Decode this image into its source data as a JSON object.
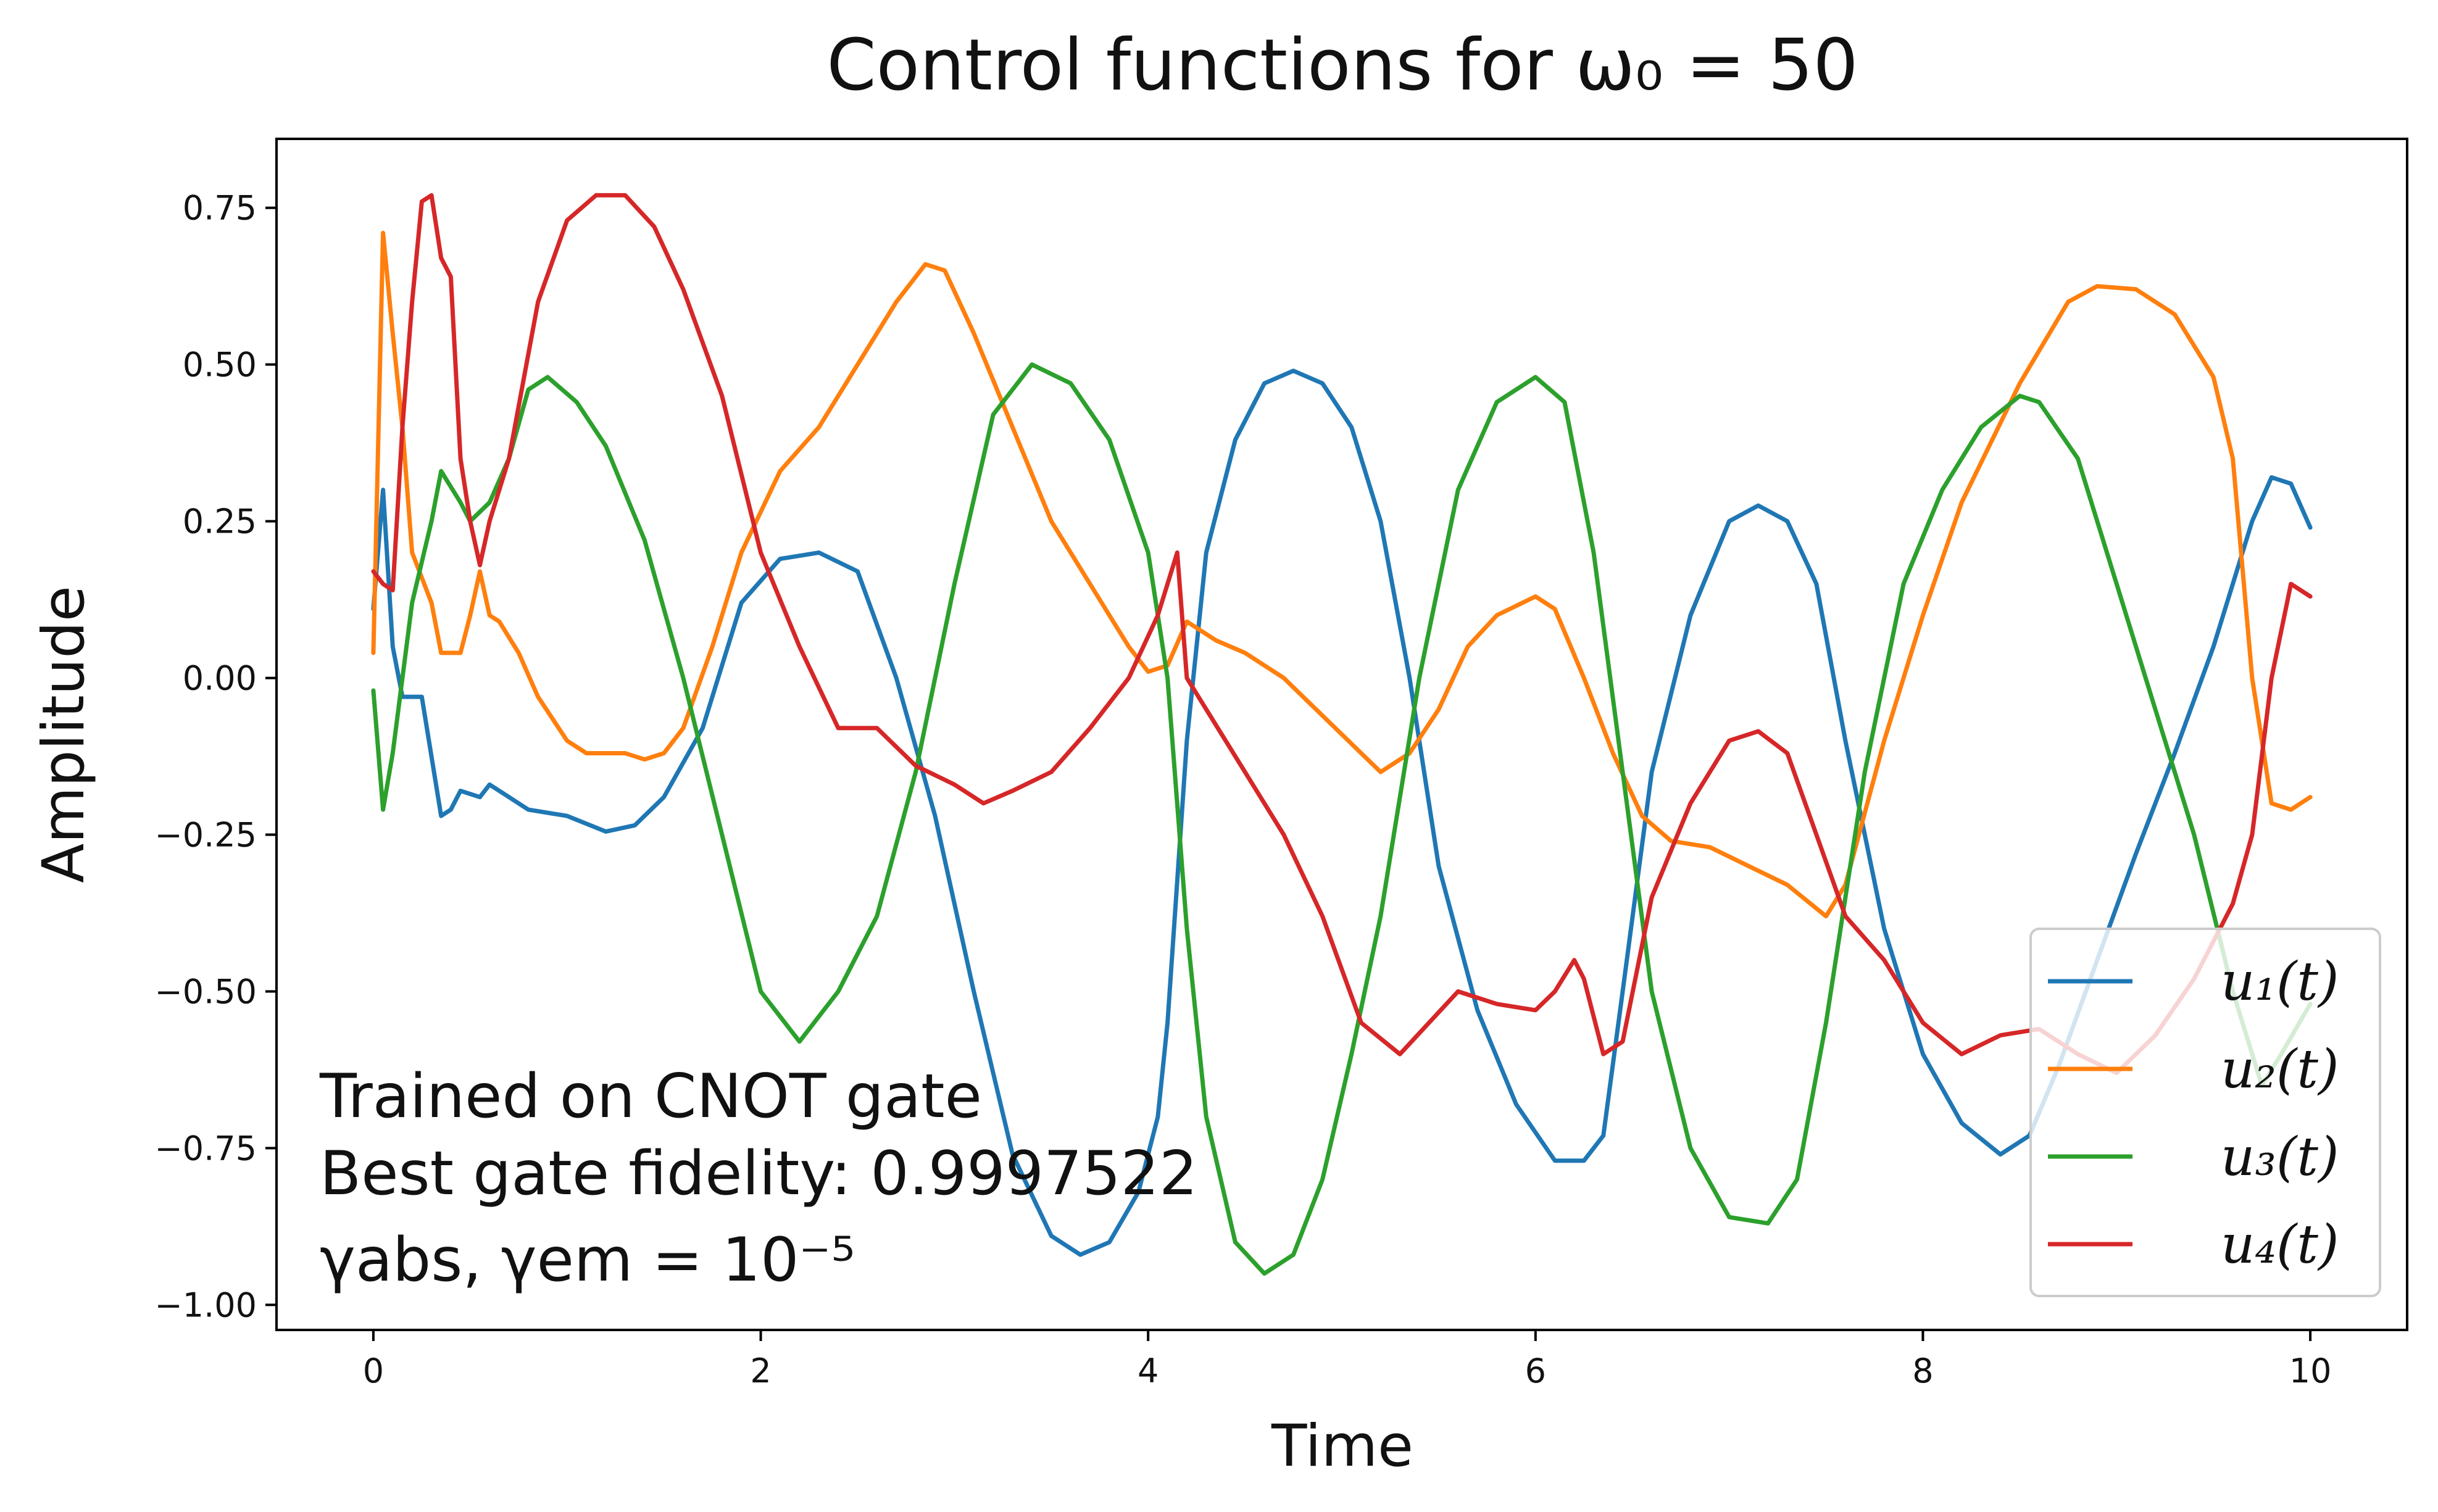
{
  "chart_data": {
    "type": "line",
    "title": "Control functions for ω₀ = 50",
    "xlabel": "Time",
    "ylabel": "Amplitude",
    "xlim": [
      -0.5,
      10.5
    ],
    "ylim": [
      -1.04,
      0.86
    ],
    "xticks": [
      0,
      2,
      4,
      6,
      8,
      10
    ],
    "xtick_labels": [
      "0",
      "2",
      "4",
      "6",
      "8",
      "10"
    ],
    "yticks": [
      -1.0,
      -0.75,
      -0.5,
      -0.25,
      0.0,
      0.25,
      0.5,
      0.75
    ],
    "ytick_labels": [
      "−1.00",
      "−0.75",
      "−0.50",
      "−0.25",
      "0.00",
      "0.25",
      "0.50",
      "0.75"
    ],
    "grid": false,
    "legend_position": "bottom-right",
    "annotations": [
      "Trained on CNOT gate",
      "Best gate fidelity: 0.9997522",
      "γabs, γem = 10⁻⁵"
    ],
    "series": [
      {
        "name": "u₁(t)",
        "color": "#1f77b4",
        "points": [
          [
            0,
            0.11
          ],
          [
            0.05,
            0.3
          ],
          [
            0.1,
            0.05
          ],
          [
            0.15,
            -0.03
          ],
          [
            0.25,
            -0.03
          ],
          [
            0.35,
            -0.22
          ],
          [
            0.4,
            -0.21
          ],
          [
            0.45,
            -0.18
          ],
          [
            0.55,
            -0.19
          ],
          [
            0.6,
            -0.17
          ],
          [
            0.7,
            -0.19
          ],
          [
            0.8,
            -0.21
          ],
          [
            1.0,
            -0.22
          ],
          [
            1.2,
            -0.245
          ],
          [
            1.35,
            -0.235
          ],
          [
            1.5,
            -0.19
          ],
          [
            1.7,
            -0.08
          ],
          [
            1.9,
            0.12
          ],
          [
            2.1,
            0.19
          ],
          [
            2.3,
            0.2
          ],
          [
            2.5,
            0.17
          ],
          [
            2.7,
            0.0
          ],
          [
            2.9,
            -0.22
          ],
          [
            3.1,
            -0.5
          ],
          [
            3.3,
            -0.76
          ],
          [
            3.5,
            -0.89
          ],
          [
            3.65,
            -0.92
          ],
          [
            3.8,
            -0.9
          ],
          [
            3.95,
            -0.82
          ],
          [
            4.05,
            -0.7
          ],
          [
            4.1,
            -0.55
          ],
          [
            4.2,
            -0.1
          ],
          [
            4.3,
            0.2
          ],
          [
            4.45,
            0.38
          ],
          [
            4.6,
            0.47
          ],
          [
            4.75,
            0.49
          ],
          [
            4.9,
            0.47
          ],
          [
            5.05,
            0.4
          ],
          [
            5.2,
            0.25
          ],
          [
            5.35,
            0.0
          ],
          [
            5.5,
            -0.3
          ],
          [
            5.7,
            -0.53
          ],
          [
            5.9,
            -0.68
          ],
          [
            6.1,
            -0.77
          ],
          [
            6.25,
            -0.77
          ],
          [
            6.35,
            -0.73
          ],
          [
            6.45,
            -0.5
          ],
          [
            6.6,
            -0.15
          ],
          [
            6.8,
            0.1
          ],
          [
            7.0,
            0.25
          ],
          [
            7.15,
            0.275
          ],
          [
            7.3,
            0.25
          ],
          [
            7.45,
            0.15
          ],
          [
            7.6,
            -0.1
          ],
          [
            7.8,
            -0.4
          ],
          [
            8.0,
            -0.6
          ],
          [
            8.2,
            -0.71
          ],
          [
            8.4,
            -0.76
          ],
          [
            8.55,
            -0.73
          ],
          [
            8.7,
            -0.62
          ],
          [
            8.9,
            -0.45
          ],
          [
            9.1,
            -0.28
          ],
          [
            9.3,
            -0.12
          ],
          [
            9.5,
            0.05
          ],
          [
            9.7,
            0.25
          ],
          [
            9.8,
            0.32
          ],
          [
            9.9,
            0.31
          ],
          [
            10.0,
            0.24
          ]
        ]
      },
      {
        "name": "u₂(t)",
        "color": "#ff7f0e",
        "points": [
          [
            0,
            0.04
          ],
          [
            0.05,
            0.71
          ],
          [
            0.1,
            0.55
          ],
          [
            0.15,
            0.4
          ],
          [
            0.2,
            0.2
          ],
          [
            0.3,
            0.12
          ],
          [
            0.35,
            0.04
          ],
          [
            0.45,
            0.04
          ],
          [
            0.5,
            0.1
          ],
          [
            0.55,
            0.17
          ],
          [
            0.6,
            0.1
          ],
          [
            0.65,
            0.09
          ],
          [
            0.75,
            0.04
          ],
          [
            0.85,
            -0.03
          ],
          [
            1.0,
            -0.1
          ],
          [
            1.1,
            -0.12
          ],
          [
            1.3,
            -0.12
          ],
          [
            1.4,
            -0.13
          ],
          [
            1.5,
            -0.12
          ],
          [
            1.6,
            -0.08
          ],
          [
            1.75,
            0.05
          ],
          [
            1.9,
            0.2
          ],
          [
            2.1,
            0.33
          ],
          [
            2.3,
            0.4
          ],
          [
            2.5,
            0.5
          ],
          [
            2.7,
            0.6
          ],
          [
            2.85,
            0.66
          ],
          [
            2.95,
            0.65
          ],
          [
            3.1,
            0.55
          ],
          [
            3.3,
            0.4
          ],
          [
            3.5,
            0.25
          ],
          [
            3.7,
            0.15
          ],
          [
            3.9,
            0.05
          ],
          [
            4.0,
            0.01
          ],
          [
            4.1,
            0.02
          ],
          [
            4.2,
            0.09
          ],
          [
            4.35,
            0.06
          ],
          [
            4.5,
            0.04
          ],
          [
            4.7,
            0.0
          ],
          [
            4.9,
            -0.06
          ],
          [
            5.1,
            -0.12
          ],
          [
            5.2,
            -0.15
          ],
          [
            5.35,
            -0.12
          ],
          [
            5.5,
            -0.05
          ],
          [
            5.65,
            0.05
          ],
          [
            5.8,
            0.1
          ],
          [
            6.0,
            0.13
          ],
          [
            6.1,
            0.11
          ],
          [
            6.25,
            0.0
          ],
          [
            6.4,
            -0.12
          ],
          [
            6.55,
            -0.22
          ],
          [
            6.7,
            -0.26
          ],
          [
            6.9,
            -0.27
          ],
          [
            7.1,
            -0.3
          ],
          [
            7.3,
            -0.33
          ],
          [
            7.5,
            -0.38
          ],
          [
            7.6,
            -0.33
          ],
          [
            7.8,
            -0.1
          ],
          [
            8.0,
            0.1
          ],
          [
            8.2,
            0.28
          ],
          [
            8.5,
            0.47
          ],
          [
            8.75,
            0.6
          ],
          [
            8.9,
            0.625
          ],
          [
            9.1,
            0.62
          ],
          [
            9.3,
            0.58
          ],
          [
            9.5,
            0.48
          ],
          [
            9.6,
            0.35
          ],
          [
            9.7,
            0.0
          ],
          [
            9.8,
            -0.2
          ],
          [
            9.9,
            -0.21
          ],
          [
            10.0,
            -0.19
          ]
        ]
      },
      {
        "name": "u₃(t)",
        "color": "#2ca02c",
        "points": [
          [
            0,
            -0.02
          ],
          [
            0.05,
            -0.21
          ],
          [
            0.1,
            -0.12
          ],
          [
            0.2,
            0.12
          ],
          [
            0.3,
            0.25
          ],
          [
            0.35,
            0.33
          ],
          [
            0.45,
            0.28
          ],
          [
            0.5,
            0.25
          ],
          [
            0.6,
            0.28
          ],
          [
            0.7,
            0.35
          ],
          [
            0.8,
            0.46
          ],
          [
            0.9,
            0.48
          ],
          [
            1.05,
            0.44
          ],
          [
            1.2,
            0.37
          ],
          [
            1.4,
            0.22
          ],
          [
            1.6,
            0.0
          ],
          [
            1.8,
            -0.25
          ],
          [
            2.0,
            -0.5
          ],
          [
            2.2,
            -0.58
          ],
          [
            2.4,
            -0.5
          ],
          [
            2.6,
            -0.38
          ],
          [
            2.8,
            -0.15
          ],
          [
            3.0,
            0.15
          ],
          [
            3.2,
            0.42
          ],
          [
            3.4,
            0.5
          ],
          [
            3.6,
            0.47
          ],
          [
            3.8,
            0.38
          ],
          [
            4.0,
            0.2
          ],
          [
            4.1,
            0.0
          ],
          [
            4.2,
            -0.4
          ],
          [
            4.3,
            -0.7
          ],
          [
            4.45,
            -0.9
          ],
          [
            4.6,
            -0.95
          ],
          [
            4.75,
            -0.92
          ],
          [
            4.9,
            -0.8
          ],
          [
            5.05,
            -0.6
          ],
          [
            5.2,
            -0.38
          ],
          [
            5.4,
            0.0
          ],
          [
            5.6,
            0.3
          ],
          [
            5.8,
            0.44
          ],
          [
            6.0,
            0.48
          ],
          [
            6.15,
            0.44
          ],
          [
            6.3,
            0.2
          ],
          [
            6.45,
            -0.15
          ],
          [
            6.6,
            -0.5
          ],
          [
            6.8,
            -0.75
          ],
          [
            7.0,
            -0.86
          ],
          [
            7.2,
            -0.87
          ],
          [
            7.35,
            -0.8
          ],
          [
            7.5,
            -0.55
          ],
          [
            7.7,
            -0.15
          ],
          [
            7.9,
            0.15
          ],
          [
            8.1,
            0.3
          ],
          [
            8.3,
            0.4
          ],
          [
            8.5,
            0.45
          ],
          [
            8.6,
            0.44
          ],
          [
            8.8,
            0.35
          ],
          [
            9.0,
            0.15
          ],
          [
            9.2,
            -0.05
          ],
          [
            9.4,
            -0.25
          ],
          [
            9.6,
            -0.5
          ],
          [
            9.75,
            -0.65
          ],
          [
            9.85,
            -0.6
          ],
          [
            10.0,
            -0.52
          ]
        ]
      },
      {
        "name": "u₄(t)",
        "color": "#d62728",
        "points": [
          [
            0,
            0.17
          ],
          [
            0.05,
            0.15
          ],
          [
            0.1,
            0.14
          ],
          [
            0.15,
            0.4
          ],
          [
            0.2,
            0.6
          ],
          [
            0.25,
            0.76
          ],
          [
            0.3,
            0.77
          ],
          [
            0.35,
            0.67
          ],
          [
            0.4,
            0.64
          ],
          [
            0.45,
            0.35
          ],
          [
            0.5,
            0.25
          ],
          [
            0.55,
            0.18
          ],
          [
            0.6,
            0.25
          ],
          [
            0.7,
            0.35
          ],
          [
            0.85,
            0.6
          ],
          [
            1.0,
            0.73
          ],
          [
            1.15,
            0.77
          ],
          [
            1.3,
            0.77
          ],
          [
            1.45,
            0.72
          ],
          [
            1.6,
            0.62
          ],
          [
            1.8,
            0.45
          ],
          [
            2.0,
            0.2
          ],
          [
            2.2,
            0.05
          ],
          [
            2.4,
            -0.08
          ],
          [
            2.6,
            -0.08
          ],
          [
            2.8,
            -0.14
          ],
          [
            3.0,
            -0.17
          ],
          [
            3.15,
            -0.2
          ],
          [
            3.3,
            -0.18
          ],
          [
            3.5,
            -0.15
          ],
          [
            3.7,
            -0.08
          ],
          [
            3.9,
            0.0
          ],
          [
            4.05,
            0.1
          ],
          [
            4.15,
            0.2
          ],
          [
            4.2,
            0.0
          ],
          [
            4.3,
            -0.05
          ],
          [
            4.5,
            -0.15
          ],
          [
            4.7,
            -0.25
          ],
          [
            4.9,
            -0.38
          ],
          [
            5.1,
            -0.55
          ],
          [
            5.3,
            -0.6
          ],
          [
            5.45,
            -0.55
          ],
          [
            5.6,
            -0.5
          ],
          [
            5.8,
            -0.52
          ],
          [
            6.0,
            -0.53
          ],
          [
            6.1,
            -0.5
          ],
          [
            6.2,
            -0.45
          ],
          [
            6.25,
            -0.48
          ],
          [
            6.35,
            -0.6
          ],
          [
            6.45,
            -0.58
          ],
          [
            6.6,
            -0.35
          ],
          [
            6.8,
            -0.2
          ],
          [
            7.0,
            -0.1
          ],
          [
            7.15,
            -0.085
          ],
          [
            7.3,
            -0.12
          ],
          [
            7.45,
            -0.25
          ],
          [
            7.6,
            -0.38
          ],
          [
            7.8,
            -0.45
          ],
          [
            8.0,
            -0.55
          ],
          [
            8.2,
            -0.6
          ],
          [
            8.4,
            -0.57
          ],
          [
            8.6,
            -0.56
          ],
          [
            8.8,
            -0.6
          ],
          [
            9.0,
            -0.63
          ],
          [
            9.2,
            -0.57
          ],
          [
            9.4,
            -0.48
          ],
          [
            9.6,
            -0.36
          ],
          [
            9.7,
            -0.25
          ],
          [
            9.8,
            0.0
          ],
          [
            9.9,
            0.15
          ],
          [
            10.0,
            0.13
          ]
        ]
      }
    ]
  }
}
